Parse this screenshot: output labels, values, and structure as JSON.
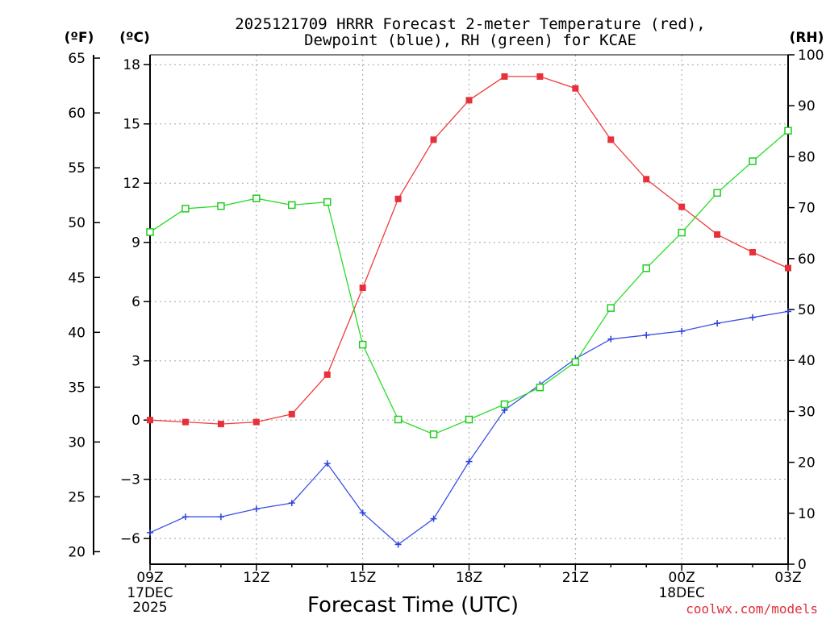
{
  "chart_data": {
    "type": "line",
    "title_line1": "2025121709 HRRR Forecast 2-meter Temperature (red),",
    "title_line2": "Dewpoint (blue), RH (green) for KCAE",
    "unit_f": "(ºF)",
    "unit_c": "(ºC)",
    "unit_rh": "(RH)",
    "xlabel": "Forecast Time (UTC)",
    "credit": "coolwx.com/models",
    "x_ticks": [
      {
        "hour": 0,
        "label": "09Z",
        "sub1": "17DEC",
        "sub2": "2025"
      },
      {
        "hour": 3,
        "label": "12Z",
        "sub1": "",
        "sub2": ""
      },
      {
        "hour": 6,
        "label": "15Z",
        "sub1": "",
        "sub2": ""
      },
      {
        "hour": 9,
        "label": "18Z",
        "sub1": "",
        "sub2": ""
      },
      {
        "hour": 12,
        "label": "21Z",
        "sub1": "",
        "sub2": ""
      },
      {
        "hour": 15,
        "label": "00Z",
        "sub1": "18DEC",
        "sub2": ""
      },
      {
        "hour": 18,
        "label": "03Z",
        "sub1": "",
        "sub2": ""
      }
    ],
    "celsius_ticks": [
      18,
      15,
      12,
      9,
      6,
      3,
      0,
      -3,
      -6
    ],
    "celsius_tick_labels": [
      "18",
      "15",
      "12",
      "9",
      "6",
      "3",
      "0",
      "−3",
      "−6"
    ],
    "fahrenheit_ticks": [
      65,
      60,
      55,
      50,
      45,
      40,
      35,
      30,
      25,
      20
    ],
    "rh_ticks": [
      100,
      90,
      80,
      70,
      60,
      50,
      40,
      30,
      20,
      10,
      0
    ],
    "celsius_range": [
      -7.3,
      18.5
    ],
    "rh_range": [
      0,
      100
    ],
    "series": [
      {
        "name": "Temperature",
        "unit": "C",
        "color": "#f03c3c",
        "marker": "filled-square",
        "values": [
          0.0,
          -0.1,
          -0.2,
          -0.1,
          0.3,
          2.3,
          6.7,
          11.2,
          14.2,
          16.2,
          17.4,
          17.4,
          16.8,
          14.2,
          12.2,
          10.8,
          9.4,
          8.5,
          7.7
        ]
      },
      {
        "name": "Dewpoint",
        "unit": "C",
        "color": "#3c50e6",
        "marker": "plus",
        "values": [
          -5.7,
          -4.9,
          -4.9,
          -4.5,
          -4.2,
          -2.2,
          -4.7,
          -6.3,
          -5.0,
          -2.1,
          0.5,
          1.8,
          3.1,
          4.1,
          4.3,
          4.5,
          4.9,
          5.2,
          5.5
        ]
      },
      {
        "name": "RH",
        "unit": "%",
        "color": "#28dc28",
        "marker": "open-square",
        "values": [
          65.2,
          69.8,
          70.3,
          71.8,
          70.5,
          71.1,
          43.1,
          28.4,
          25.5,
          28.4,
          31.4,
          34.7,
          39.7,
          50.3,
          58.1,
          65.1,
          72.9,
          79.1,
          85.1
        ]
      }
    ]
  }
}
